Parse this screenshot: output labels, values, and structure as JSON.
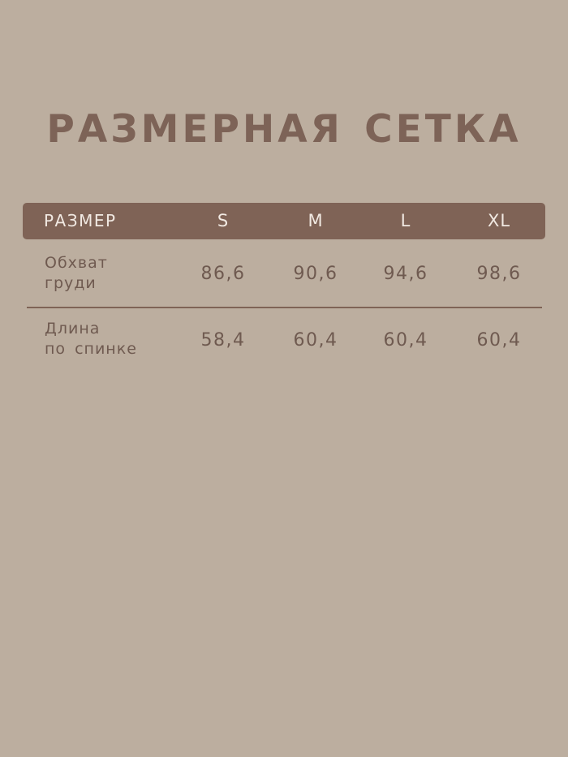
{
  "title": "РАЗМЕРНАЯ СЕТКА",
  "table": {
    "header_label": "РАЗМЕР",
    "sizes": [
      "S",
      "M",
      "L",
      "XL"
    ],
    "rows": [
      {
        "label_line1": "Обхват",
        "label_line2": "груди",
        "values": [
          "86,6",
          "90,6",
          "94,6",
          "98,6"
        ]
      },
      {
        "label_line1": "Длина",
        "label_line2": "по спинке",
        "values": [
          "58,4",
          "60,4",
          "60,4",
          "60,4"
        ]
      }
    ]
  },
  "colors": {
    "background": "#bcae9f",
    "accent": "#7f6356",
    "text": "#6f5a50"
  }
}
